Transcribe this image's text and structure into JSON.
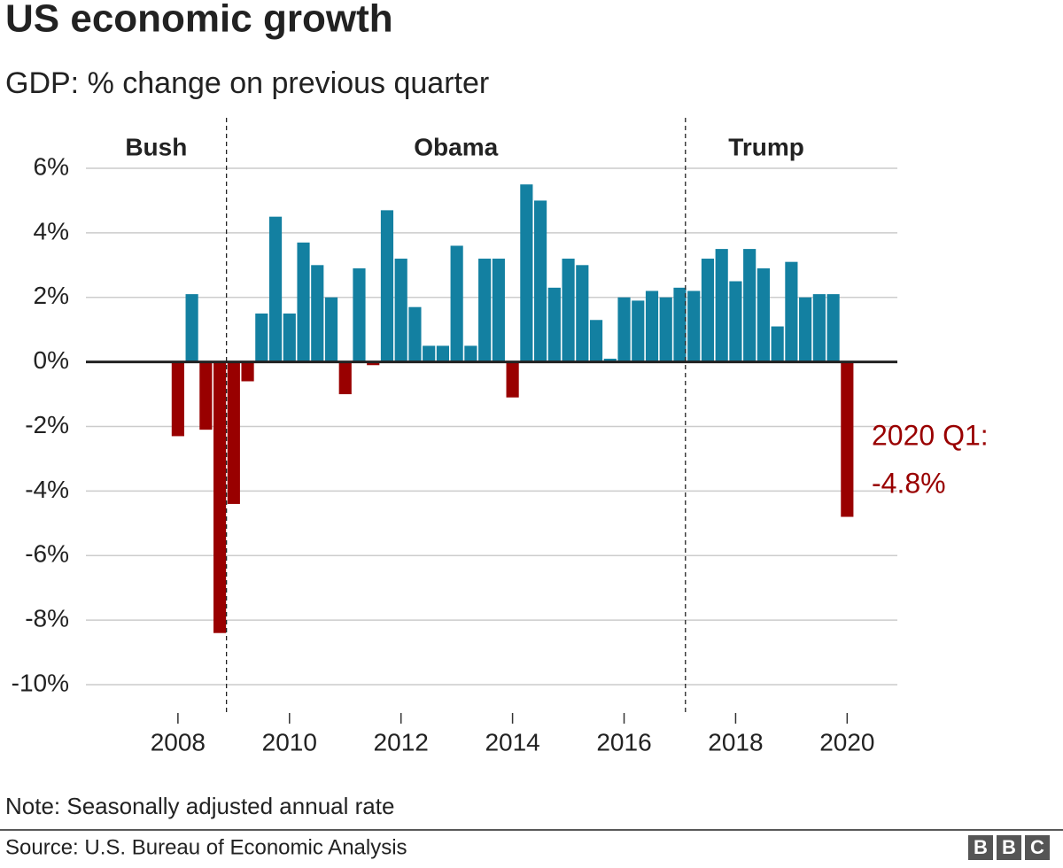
{
  "chart_data": {
    "type": "bar",
    "title": "US economic growth",
    "subtitle": "GDP: % change on previous quarter",
    "x": [
      2008,
      2008.25,
      2008.5,
      2008.75,
      2009,
      2009.25,
      2009.5,
      2009.75,
      2010,
      2010.25,
      2010.5,
      2010.75,
      2011,
      2011.25,
      2011.5,
      2011.75,
      2012,
      2012.25,
      2012.5,
      2012.75,
      2013,
      2013.25,
      2013.5,
      2013.75,
      2014,
      2014.25,
      2014.5,
      2014.75,
      2015,
      2015.25,
      2015.5,
      2015.75,
      2016,
      2016.25,
      2016.5,
      2016.75,
      2017,
      2017.25,
      2017.5,
      2017.75,
      2018,
      2018.25,
      2018.5,
      2018.75,
      2019,
      2019.25,
      2019.5,
      2019.75,
      2020
    ],
    "values": [
      -2.3,
      2.1,
      -2.1,
      -8.4,
      -4.4,
      -0.6,
      1.5,
      4.5,
      1.5,
      3.7,
      3.0,
      2.0,
      -1.0,
      2.9,
      -0.1,
      4.7,
      3.2,
      1.7,
      0.5,
      0.5,
      3.6,
      0.5,
      3.2,
      3.2,
      -1.1,
      5.5,
      5.0,
      2.3,
      3.2,
      3.0,
      1.3,
      0.1,
      2.0,
      1.9,
      2.2,
      2.0,
      2.3,
      2.2,
      3.2,
      3.5,
      2.5,
      3.5,
      2.9,
      1.1,
      3.1,
      2.0,
      2.1,
      2.1,
      -4.8
    ],
    "color": "#1380a1",
    "negative_color": "#990000",
    "xlim": [
      2006.35,
      2020.9
    ],
    "xticks": [
      2008,
      2010,
      2012,
      2014,
      2016,
      2018,
      2020
    ],
    "ylim": [
      -10,
      6
    ],
    "yticks": [
      {
        "value": 6,
        "label": "6%"
      },
      {
        "value": 4,
        "label": "4%"
      },
      {
        "value": 2,
        "label": "2%"
      },
      {
        "value": 0,
        "label": "0%"
      },
      {
        "value": -2,
        "label": "-2%"
      },
      {
        "value": -4,
        "label": "-4%"
      },
      {
        "value": -6,
        "label": "-6%"
      },
      {
        "value": -8,
        "label": "-8%"
      },
      {
        "value": -10,
        "label": "-10%"
      }
    ],
    "grid": true,
    "periods": [
      {
        "label": "Bush",
        "end": 2008.87
      },
      {
        "label": "Obama",
        "start": 2008.87,
        "end": 2017.1
      },
      {
        "label": "Trump",
        "start": 2017.1
      }
    ],
    "annotation": [
      "2020 Q1:",
      "-4.8%"
    ],
    "note": "Note: Seasonally adjusted annual rate",
    "source": "Source: U.S. Bureau of Economic Analysis",
    "logo": [
      "B",
      "B",
      "C"
    ]
  }
}
